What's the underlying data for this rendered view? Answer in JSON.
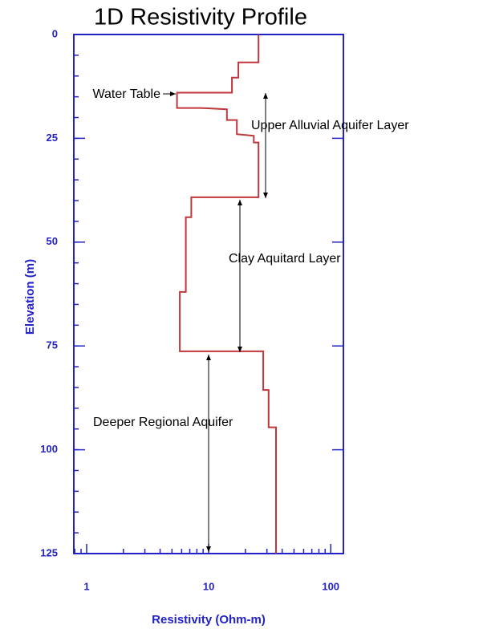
{
  "chart_data": {
    "type": "line",
    "title": "1D Resistivity Profile",
    "x_label": "Resistivity (Ohm-m)",
    "y_label": "Elevation (m)",
    "x_scale": "log",
    "y_inverted": true,
    "x": [
      25.6,
      25.6,
      17.5,
      17.5,
      15.5,
      15.5,
      5.5,
      5.5,
      8.6,
      14.1,
      14.1,
      17,
      17,
      23.4,
      23.4,
      25.6,
      25.6,
      7.2,
      7.2,
      6.5,
      6.5,
      5.8,
      5.8,
      28,
      28,
      31,
      31,
      35.6,
      35.6
    ],
    "series": [
      {
        "name": "Resistivity",
        "color": "#c0363a",
        "values": [
          0,
          6.7,
          6.7,
          10.4,
          10.4,
          14,
          14,
          17.7,
          17.7,
          18,
          20.6,
          20.6,
          24,
          24.4,
          26,
          26,
          39.2,
          39.2,
          44,
          44,
          62,
          62,
          76.3,
          76.3,
          85.6,
          85.6,
          94.6,
          94.6,
          125
        ]
      }
    ],
    "xlim": [
      0.785,
      127
    ],
    "xticks": [
      1,
      10,
      100
    ],
    "ylim": [
      0,
      125
    ],
    "yticks": [
      0,
      25,
      50,
      75,
      100,
      125
    ],
    "axis_color": "#2222c8",
    "annotations": [
      "Water Table",
      "Upper Alluvial Aquifer Layer",
      "Clay Aquitard Layer",
      "Deeper Regional Aquifer"
    ]
  }
}
